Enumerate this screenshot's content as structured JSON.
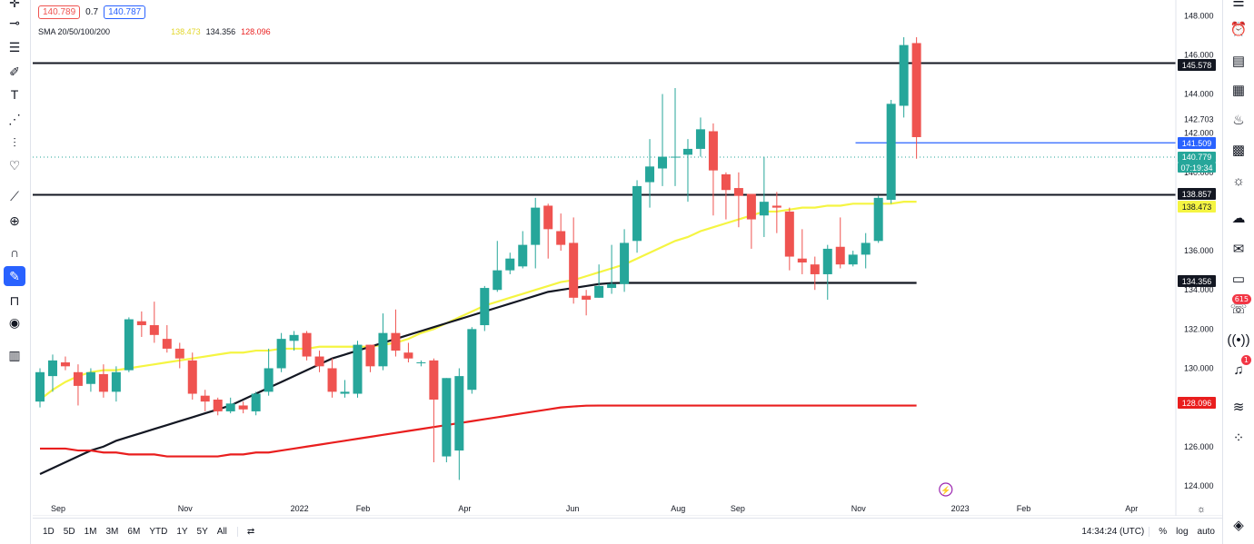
{
  "legend": {
    "price_left": "140.789",
    "spread": "0.7",
    "price_right": "140.787",
    "sma_title": "SMA 20/50/100/200",
    "sma_values": [
      "138.473",
      "134.356",
      "128.096"
    ]
  },
  "price_axis": {
    "ticks": [
      "148.000",
      "146.000",
      "144.000",
      "142.703",
      "142.000",
      "140.000",
      "136.000",
      "134.000",
      "132.000",
      "130.000",
      "126.000",
      "124.000"
    ],
    "tags": {
      "hline_top": "145.578",
      "blue_line": "141.509",
      "current": "140.779",
      "countdown": "07:19:34",
      "hline_bottom": "138.857",
      "sma50": "138.473",
      "sma100": "134.356",
      "sma200": "128.096"
    }
  },
  "time_axis": [
    "Sep",
    "Nov",
    "2022",
    "Feb",
    "Apr",
    "Jun",
    "Aug",
    "Sep",
    "Nov",
    "2023",
    "Feb",
    "Apr"
  ],
  "bottom_bar": {
    "ranges": [
      "1D",
      "5D",
      "1M",
      "3M",
      "6M",
      "YTD",
      "1Y",
      "5Y",
      "All"
    ],
    "clock": "14:34:24 (UTC)",
    "pct": "%",
    "log": "log",
    "auto": "auto"
  },
  "badges": {
    "notifications": "615",
    "alerts": "1"
  },
  "colors": {
    "up": "#26a69a",
    "down": "#ef5350",
    "sma20": "#f5f542",
    "sma50": "#131722",
    "sma100": "#e91e1e",
    "hline": "#131722",
    "blue_line": "#2962ff",
    "current_tag": "#26a69a"
  },
  "chart_data": {
    "type": "candlestick",
    "ylim": [
      123.3,
      148.8
    ],
    "x": [
      "2021-09-03",
      "2021-09-10",
      "2021-09-17",
      "2021-09-24",
      "2021-10-01",
      "2021-10-08",
      "2021-10-15",
      "2021-10-22",
      "2021-10-29",
      "2021-11-05",
      "2021-11-12",
      "2021-11-19",
      "2021-11-26",
      "2021-12-03",
      "2021-12-10",
      "2021-12-17",
      "2021-12-24",
      "2021-12-31",
      "2022-01-07",
      "2022-01-14",
      "2022-01-21",
      "2022-01-28",
      "2022-02-04",
      "2022-02-11",
      "2022-02-18",
      "2022-02-25",
      "2022-03-04",
      "2022-03-11",
      "2022-03-18",
      "2022-03-25",
      "2022-04-01",
      "2022-04-08",
      "2022-04-15",
      "2022-04-22",
      "2022-04-29",
      "2022-05-06",
      "2022-05-13",
      "2022-05-20",
      "2022-05-27",
      "2022-06-03",
      "2022-06-10",
      "2022-06-17",
      "2022-06-24",
      "2022-07-01",
      "2022-07-08",
      "2022-07-15",
      "2022-07-22",
      "2022-07-29",
      "2022-08-05",
      "2022-08-12",
      "2022-08-19",
      "2022-08-26",
      "2022-09-02",
      "2022-09-09",
      "2022-09-16",
      "2022-09-23",
      "2022-09-30",
      "2022-10-07",
      "2022-10-14",
      "2022-10-21",
      "2022-10-28",
      "2022-11-04",
      "2022-11-11",
      "2022-11-18",
      "2022-11-25",
      "2022-12-02",
      "2022-12-09",
      "2022-12-16",
      "2022-12-23",
      "2022-12-30"
    ],
    "candles": [
      [
        128.3,
        129.8,
        128.0,
        130.0
      ],
      [
        129.6,
        130.4,
        128.8,
        130.7
      ],
      [
        130.3,
        130.1,
        129.9,
        130.6
      ],
      [
        129.8,
        129.1,
        128.1,
        130.2
      ],
      [
        129.2,
        129.8,
        128.8,
        130.0
      ],
      [
        129.7,
        128.8,
        128.5,
        130.2
      ],
      [
        128.8,
        129.8,
        128.3,
        130.1
      ],
      [
        129.9,
        132.5,
        129.8,
        132.6
      ],
      [
        132.4,
        132.2,
        131.6,
        132.9
      ],
      [
        132.2,
        131.7,
        131.3,
        133.4
      ],
      [
        131.5,
        131.0,
        130.8,
        132.2
      ],
      [
        131.0,
        130.5,
        130.0,
        131.3
      ],
      [
        130.4,
        128.7,
        128.4,
        130.8
      ],
      [
        128.6,
        128.3,
        127.8,
        128.9
      ],
      [
        128.4,
        127.8,
        127.6,
        128.5
      ],
      [
        127.8,
        128.2,
        127.7,
        128.5
      ],
      [
        128.1,
        127.9,
        127.7,
        128.3
      ],
      [
        127.8,
        128.7,
        127.6,
        128.8
      ],
      [
        128.8,
        130.0,
        128.6,
        131.0
      ],
      [
        130.0,
        131.5,
        129.8,
        131.8
      ],
      [
        131.4,
        131.7,
        130.9,
        131.9
      ],
      [
        131.8,
        130.6,
        130.4,
        131.9
      ],
      [
        130.6,
        130.1,
        129.8,
        130.9
      ],
      [
        130.0,
        128.8,
        128.5,
        130.5
      ],
      [
        128.7,
        128.8,
        128.5,
        129.4
      ],
      [
        128.7,
        131.2,
        128.5,
        131.4
      ],
      [
        131.2,
        130.1,
        129.8,
        131.2
      ],
      [
        130.1,
        131.8,
        129.9,
        132.8
      ],
      [
        131.8,
        130.9,
        130.6,
        133.0
      ],
      [
        130.8,
        130.5,
        130.3,
        131.3
      ],
      [
        130.3,
        130.3,
        130.1,
        130.4
      ],
      [
        130.4,
        128.4,
        125.2,
        130.5
      ],
      [
        125.5,
        129.5,
        125.2,
        129.5
      ],
      [
        125.8,
        129.6,
        124.3,
        130.0
      ],
      [
        128.9,
        132.0,
        128.7,
        132.1
      ],
      [
        132.2,
        134.1,
        131.9,
        134.2
      ],
      [
        134.0,
        135.0,
        133.9,
        136.5
      ],
      [
        135.0,
        135.6,
        134.8,
        135.9
      ],
      [
        135.2,
        136.3,
        135.1,
        137.0
      ],
      [
        136.3,
        138.2,
        135.1,
        138.7
      ],
      [
        138.3,
        137.1,
        135.6,
        138.4
      ],
      [
        137.0,
        136.3,
        136.0,
        137.9
      ],
      [
        136.4,
        133.6,
        133.3,
        137.7
      ],
      [
        133.7,
        133.5,
        132.7,
        134.0
      ],
      [
        133.6,
        134.2,
        133.6,
        135.3
      ],
      [
        134.1,
        134.3,
        133.8,
        136.3
      ],
      [
        134.3,
        136.4,
        133.9,
        137.1
      ],
      [
        136.5,
        139.3,
        135.9,
        139.6
      ],
      [
        139.5,
        140.3,
        138.2,
        141.7
      ],
      [
        140.2,
        140.8,
        139.3,
        144.0
      ],
      [
        140.8,
        140.8,
        139.3,
        144.3
      ],
      [
        140.9,
        141.2,
        138.5,
        141.7
      ],
      [
        141.2,
        142.2,
        140.8,
        142.8
      ],
      [
        142.1,
        140.1,
        137.8,
        142.5
      ],
      [
        139.9,
        139.1,
        137.6,
        140.0
      ],
      [
        139.2,
        138.8,
        137.2,
        140.0
      ],
      [
        138.9,
        137.6,
        136.1,
        138.8
      ],
      [
        137.8,
        138.5,
        136.7,
        140.8
      ],
      [
        138.3,
        138.2,
        136.9,
        139.0
      ],
      [
        138.0,
        135.7,
        135.0,
        138.2
      ],
      [
        135.6,
        135.4,
        134.8,
        137.1
      ],
      [
        135.3,
        134.8,
        134.0,
        135.7
      ],
      [
        134.8,
        136.1,
        133.5,
        136.3
      ],
      [
        136.2,
        135.3,
        135.1,
        137.7
      ],
      [
        135.3,
        135.8,
        135.2,
        136.0
      ],
      [
        135.8,
        136.4,
        135.1,
        136.9
      ],
      [
        136.5,
        138.7,
        136.4,
        138.8
      ],
      [
        138.6,
        143.5,
        138.4,
        143.7
      ],
      [
        143.4,
        146.5,
        142.8,
        146.9
      ],
      [
        146.6,
        141.8,
        140.7,
        146.9
      ]
    ],
    "series": [
      {
        "name": "SMA 20",
        "values": [
          128.4,
          128.9,
          129.3,
          129.6,
          129.8,
          129.9,
          129.9,
          130.0,
          130.1,
          130.2,
          130.3,
          130.4,
          130.5,
          130.6,
          130.7,
          130.8,
          130.8,
          130.9,
          130.9,
          131.0,
          131.0,
          131.0,
          131.1,
          131.1,
          131.1,
          131.1,
          131.1,
          131.2,
          131.3,
          131.5,
          131.8,
          132.0,
          132.3,
          132.6,
          132.9,
          133.2,
          133.4,
          133.6,
          133.8,
          134.0,
          134.2,
          134.4,
          134.5,
          134.7,
          134.9,
          135.1,
          135.3,
          135.6,
          135.9,
          136.2,
          136.5,
          136.7,
          137.0,
          137.2,
          137.4,
          137.6,
          137.8,
          138.0,
          138.0,
          138.1,
          138.2,
          138.2,
          138.3,
          138.3,
          138.4,
          138.4,
          138.4,
          138.4,
          138.5,
          138.5
        ]
      },
      {
        "name": "SMA 50",
        "values": [
          124.6,
          124.9,
          125.2,
          125.5,
          125.8,
          126.0,
          126.3,
          126.5,
          126.7,
          126.9,
          127.1,
          127.3,
          127.5,
          127.7,
          127.9,
          128.1,
          128.4,
          128.7,
          129.0,
          129.3,
          129.6,
          129.9,
          130.2,
          130.5,
          130.7,
          130.9,
          131.1,
          131.3,
          131.5,
          131.7,
          131.9,
          132.1,
          132.3,
          132.5,
          132.7,
          132.9,
          133.1,
          133.3,
          133.5,
          133.7,
          133.9,
          134.0,
          134.1,
          134.2,
          134.3,
          134.35,
          134.356,
          134.356,
          134.356,
          134.356,
          134.356,
          134.356,
          134.356,
          134.356,
          134.356,
          134.356,
          134.356,
          134.356,
          134.356,
          134.356,
          134.356,
          134.356,
          134.356,
          134.356,
          134.356,
          134.356,
          134.356,
          134.356,
          134.356,
          134.356
        ]
      },
      {
        "name": "SMA 100",
        "values": [
          125.9,
          125.9,
          125.9,
          125.8,
          125.8,
          125.7,
          125.7,
          125.6,
          125.6,
          125.6,
          125.5,
          125.5,
          125.5,
          125.5,
          125.5,
          125.6,
          125.6,
          125.7,
          125.7,
          125.8,
          125.9,
          126.0,
          126.1,
          126.2,
          126.3,
          126.4,
          126.5,
          126.6,
          126.7,
          126.8,
          126.9,
          127.0,
          127.1,
          127.2,
          127.3,
          127.4,
          127.5,
          127.6,
          127.7,
          127.8,
          127.9,
          128.0,
          128.05,
          128.09,
          128.096,
          128.096,
          128.096,
          128.096,
          128.096,
          128.096,
          128.096,
          128.096,
          128.096,
          128.096,
          128.096,
          128.096,
          128.096,
          128.096,
          128.096,
          128.096,
          128.096,
          128.096,
          128.096,
          128.096,
          128.096,
          128.096,
          128.096,
          128.096,
          128.096,
          128.096
        ]
      }
    ],
    "hlines": [
      145.578,
      138.857
    ],
    "blue_line": 141.509,
    "current_price": 140.779
  }
}
